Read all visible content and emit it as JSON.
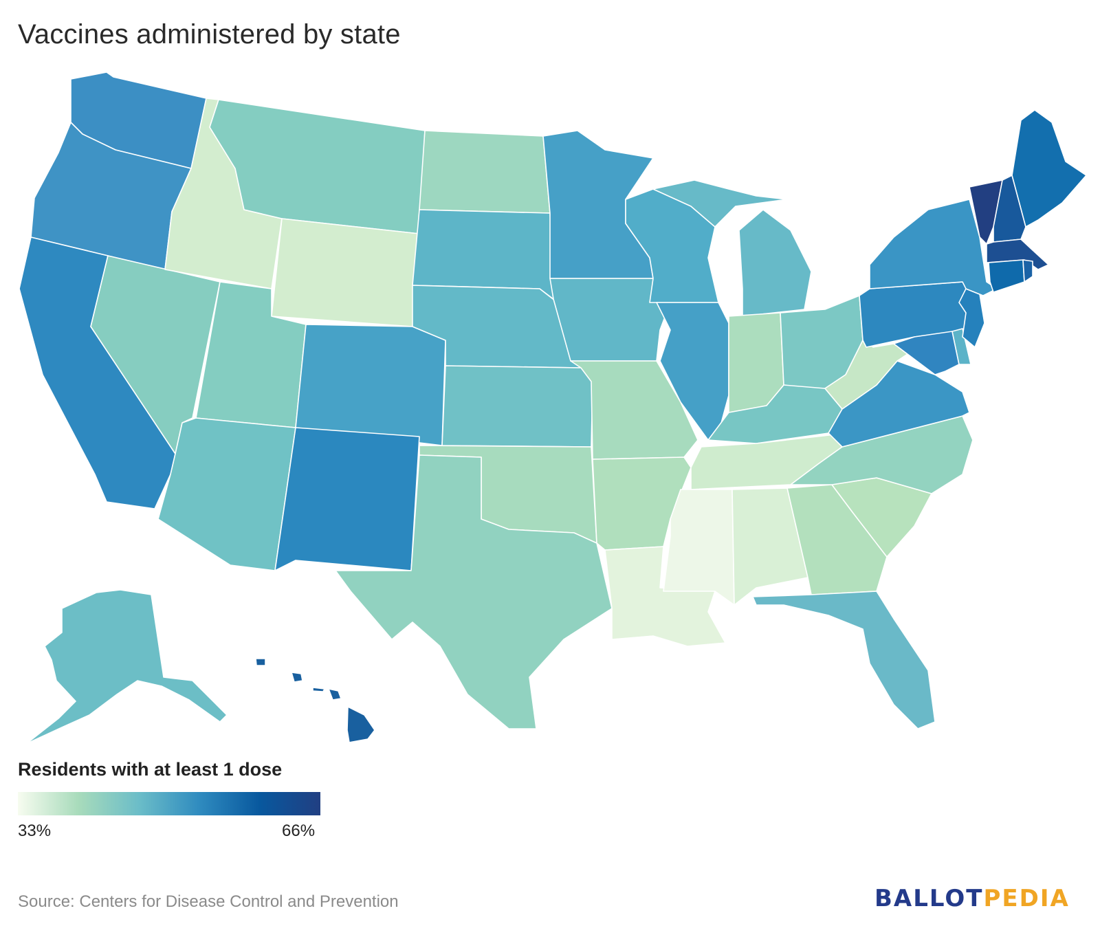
{
  "title": "Vaccines administered by state",
  "legend": {
    "title": "Residents with at least 1 dose",
    "min_label": "33%",
    "max_label": "66%",
    "min_value": 33,
    "max_value": 66,
    "colors": [
      "#f7fcf0",
      "#a8dbbb",
      "#6bbdc8",
      "#2f8bbf",
      "#08589e",
      "#213f82"
    ]
  },
  "source": "Source: Centers for Disease Control and Prevention",
  "logo": {
    "part1": "BALLOT",
    "part2": "PEDIA",
    "color1": "#233a8a",
    "color2": "#f0a524"
  },
  "states": {
    "WA": "#3c8fc4",
    "OR": "#3f93c5",
    "CA": "#2e89c0",
    "NV": "#86cdc0",
    "ID": "#d3edcf",
    "MT": "#84cdc1",
    "WY": "#d3edcf",
    "UT": "#84cdc1",
    "AZ": "#70c2c5",
    "CO": "#47a2c7",
    "NM": "#2b88bf",
    "ND": "#9dd7c0",
    "SD": "#5db5c8",
    "NE": "#63b9c8",
    "KS": "#70c1c6",
    "OK": "#a7dbbe",
    "TX": "#91d2c0",
    "MN": "#46a0c7",
    "IA": "#61b7c8",
    "MO": "#a7dbbe",
    "AR": "#b0dfbd",
    "LA": "#e3f3dd",
    "WI": "#51adc9",
    "IL": "#45a0c7",
    "MI": "#67bac8",
    "IN": "#acddbe",
    "OH": "#7cc8c4",
    "KY": "#78c6c4",
    "TN": "#cfecce",
    "MS": "#edf7e8",
    "AL": "#d9f0d6",
    "GA": "#b3e0bd",
    "FL": "#6ab9c8",
    "SC": "#b7e2bd",
    "NC": "#93d3c0",
    "VA": "#3b96c5",
    "WV": "#c6e7c6",
    "PA": "#2d88bf",
    "NY": "#3a95c5",
    "ME": "#136fae",
    "VT": "#223f81",
    "NH": "#18599c",
    "MA": "#1d4f92",
    "CT": "#0f6aab",
    "RI": "#1b63a6",
    "NJ": "#2581bc",
    "DE": "#5cb3c8",
    "MD": "#3085c0",
    "AK": "#6cbec6",
    "HI": "#19609f"
  }
}
